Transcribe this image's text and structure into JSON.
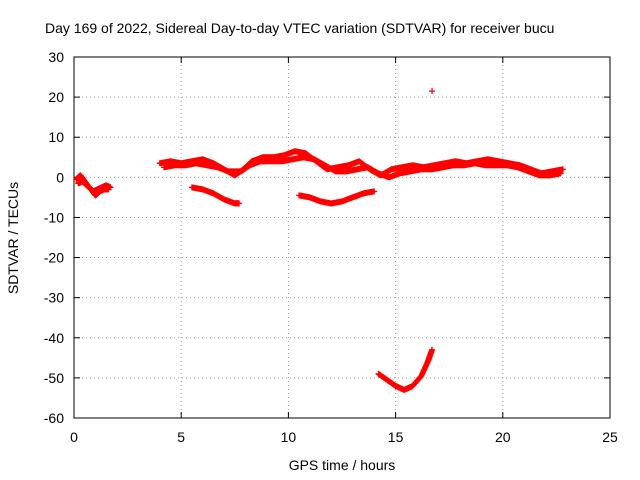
{
  "chart_data": {
    "type": "scatter",
    "title": "Day 169 of 2022, Sidereal Day-to-day VTEC variation (SDTVAR) for receiver bucu",
    "xlabel": "GPS time / hours",
    "ylabel": "SDTVAR / TECUs",
    "xlim": [
      0,
      25
    ],
    "ylim": [
      -60,
      30
    ],
    "x_ticks": [
      0,
      5,
      10,
      15,
      20,
      25
    ],
    "y_ticks": [
      30,
      20,
      10,
      0,
      -10,
      -20,
      -30,
      -40,
      -50,
      -60
    ],
    "grid": true,
    "series": [
      {
        "name": "SDTVAR",
        "color": "#ff0000",
        "marker": "plus",
        "segments": [
          {
            "x": [
              0.1,
              0.3,
              0.5,
              0.7,
              0.9,
              1.1,
              1.3,
              1.5,
              1.7
            ],
            "y": [
              -0.5,
              0.5,
              -1,
              -2.5,
              -3.5,
              -3,
              -2.5,
              -2,
              -2.5
            ]
          },
          {
            "x": [
              0.2,
              0.4,
              0.6,
              0.8,
              1.0,
              1.2,
              1.4,
              1.6
            ],
            "y": [
              -1.5,
              -1,
              -2,
              -3,
              -4.5,
              -3.5,
              -3,
              -3
            ]
          },
          {
            "x": [
              4.0,
              4.5,
              5.0,
              5.5,
              6.0,
              6.5,
              7.0,
              7.5,
              7.9,
              8.3,
              8.8,
              9.3,
              9.8,
              10.3,
              10.8,
              11.3,
              11.8,
              12.3,
              12.8,
              13.3,
              13.8,
              14.3,
              14.8,
              15.3,
              15.8,
              16.3,
              16.8,
              17.3,
              17.8,
              18.3,
              18.8,
              19.3,
              19.8,
              20.3,
              20.8,
              21.3,
              21.8,
              22.3,
              22.8
            ],
            "y": [
              3.5,
              4,
              3.5,
              4,
              4.5,
              3.5,
              2,
              0.5,
              2,
              4,
              5,
              5,
              5.5,
              6.5,
              6,
              4,
              2,
              2.5,
              3,
              4,
              2,
              0.5,
              2,
              2.5,
              3,
              2.5,
              3,
              3.5,
              4,
              3.5,
              4,
              4.5,
              4,
              3.5,
              3,
              2,
              1,
              1.5,
              2
            ]
          },
          {
            "x": [
              4.2,
              4.7,
              5.2,
              5.7,
              6.2,
              6.7,
              7.2,
              7.8,
              8.2,
              8.7,
              9.2,
              9.7,
              10.2,
              10.7,
              11.2,
              11.7,
              12.2,
              12.7,
              13.2,
              13.7,
              14.2,
              14.7,
              15.2,
              15.7,
              16.2,
              16.7,
              17.2,
              17.7,
              18.2,
              18.7,
              19.2,
              19.7,
              20.2,
              20.7,
              21.2,
              21.7,
              22.2,
              22.7
            ],
            "y": [
              2.5,
              3,
              3,
              3.5,
              3,
              2.5,
              1.5,
              1.5,
              3,
              4,
              4,
              4,
              4.5,
              5,
              4.5,
              3,
              1.5,
              1.5,
              2,
              2.5,
              1,
              0,
              1,
              1.5,
              2,
              2,
              2.5,
              3,
              3,
              3.5,
              3,
              3,
              3,
              2.5,
              1.5,
              0.5,
              0.5,
              1
            ]
          },
          {
            "x": [
              5.5,
              6.0,
              6.5,
              7.0,
              7.5,
              7.7
            ],
            "y": [
              -2.5,
              -3,
              -4,
              -5.5,
              -6.5,
              -6.5
            ]
          },
          {
            "x": [
              10.5,
              11.0,
              11.5,
              12.0,
              12.5,
              13.0,
              13.5,
              14.0
            ],
            "y": [
              -4.5,
              -5,
              -6,
              -6.5,
              -6,
              -5,
              -4,
              -3.5
            ]
          },
          {
            "x": [
              14.2,
              14.6,
              15.0,
              15.4,
              15.8,
              16.2,
              16.5,
              16.7
            ],
            "y": [
              -49,
              -50.5,
              -52,
              -53,
              -52,
              -49.5,
              -46,
              -43
            ]
          },
          {
            "x": [
              16.7
            ],
            "y": [
              21.5
            ]
          }
        ]
      }
    ]
  }
}
